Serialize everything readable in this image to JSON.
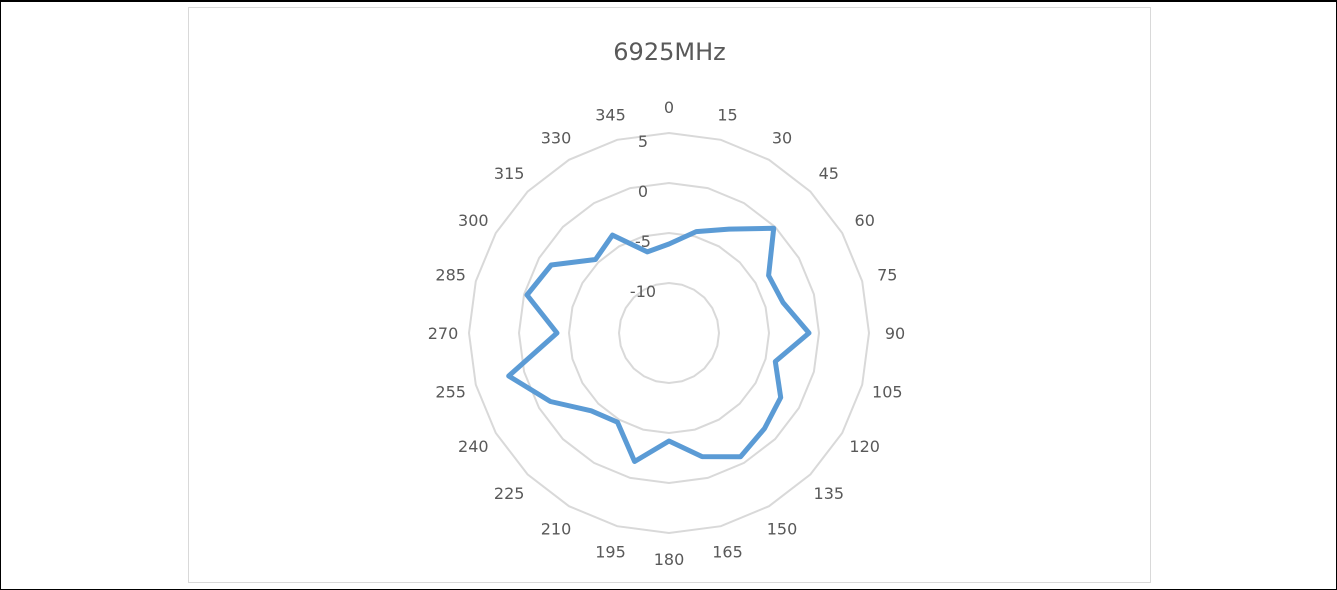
{
  "chart_data": {
    "type": "radar",
    "title": "6925MHz",
    "categories": [
      "0",
      "15",
      "30",
      "45",
      "60",
      "75",
      "90",
      "105",
      "120",
      "135",
      "150",
      "165",
      "180",
      "195",
      "210",
      "225",
      "240",
      "255",
      "270",
      "285",
      "300",
      "315",
      "330",
      "345"
    ],
    "radial_ticks": [
      "-10",
      "-5",
      "0",
      "5"
    ],
    "rlim": [
      -15,
      5
    ],
    "grid": true,
    "series": [
      {
        "values": [
          -6.1,
          -4.5,
          -3,
          -0.2,
          -3.5,
          -3.2,
          -1,
          -4,
          -2.1,
          -1.5,
          -0.7,
          -2.2,
          -4.2,
          -1.7,
          -4.7,
          -4,
          -1.3,
          1.6,
          -3.8,
          -0.3,
          -1.4,
          -4.6,
          -3.7,
          -6.6
        ],
        "color": "#5b9bd5"
      }
    ]
  }
}
